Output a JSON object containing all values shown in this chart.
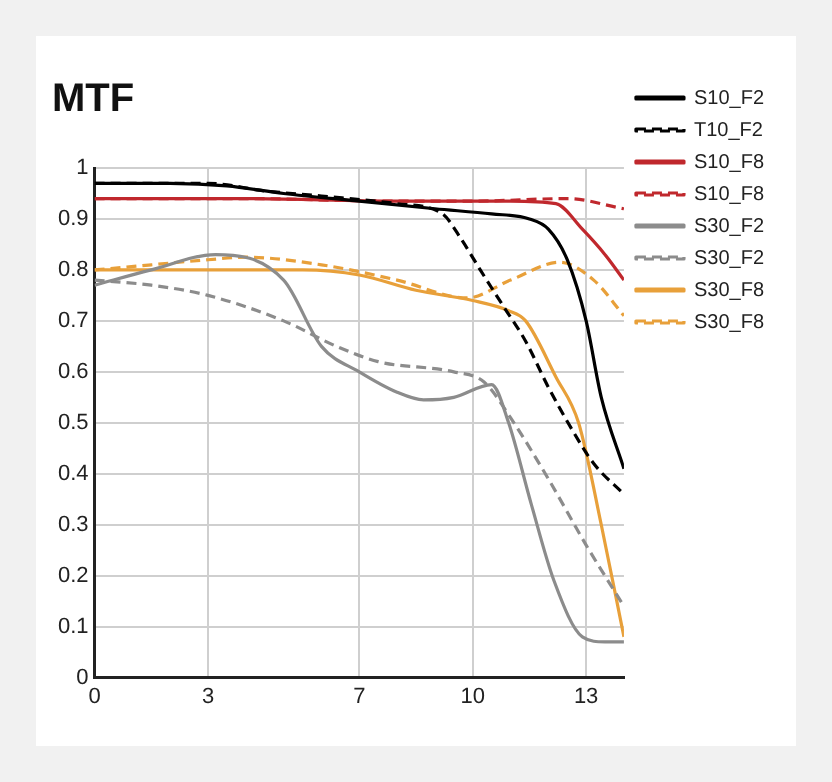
{
  "chart_data": {
    "type": "line",
    "title": "MTF",
    "xlim": [
      0,
      14
    ],
    "xticks": [
      0,
      3,
      7,
      10,
      13
    ],
    "ylim": [
      0,
      1
    ],
    "yticks": [
      0,
      0.1,
      0.2,
      0.3,
      0.4,
      0.5,
      0.6,
      0.7,
      0.8,
      0.9,
      1
    ],
    "grid": true,
    "legend": "right",
    "marker": "none",
    "series": [
      {
        "name": "S10_F2",
        "color": "#000000",
        "line_style": "solid",
        "x": [
          0,
          2,
          3.5,
          5,
          7,
          9,
          10.5,
          11.5,
          12,
          12.5,
          13,
          13.4,
          14
        ],
        "values": [
          0.97,
          0.97,
          0.965,
          0.95,
          0.935,
          0.92,
          0.91,
          0.9,
          0.88,
          0.82,
          0.7,
          0.55,
          0.41
        ]
      },
      {
        "name": "T10_F2",
        "color": "#000000",
        "line_style": "dashed",
        "x": [
          0,
          3,
          4.5,
          6,
          8,
          9.2,
          9.7,
          10.2,
          10.8,
          11.4,
          12,
          12.6,
          13.2,
          14
        ],
        "values": [
          0.97,
          0.97,
          0.955,
          0.945,
          0.93,
          0.91,
          0.86,
          0.8,
          0.73,
          0.66,
          0.57,
          0.49,
          0.42,
          0.36
        ]
      },
      {
        "name": "S10_F8",
        "color": "#c0282d",
        "line_style": "solid",
        "x": [
          0,
          4,
          8,
          11,
          12.2,
          12.9,
          13.5,
          14
        ],
        "values": [
          0.94,
          0.94,
          0.935,
          0.935,
          0.93,
          0.88,
          0.83,
          0.78
        ]
      },
      {
        "name": "S10_F8",
        "color": "#c0282d",
        "line_style": "dashed",
        "x": [
          0,
          4,
          8,
          10,
          12.5,
          14
        ],
        "values": [
          0.94,
          0.94,
          0.935,
          0.935,
          0.94,
          0.92
        ]
      },
      {
        "name": "S30_F2",
        "color": "#8c8c8c",
        "line_style": "solid",
        "x": [
          0,
          1.5,
          3.2,
          5,
          6,
          7,
          8,
          8.7,
          9.5,
          10.5,
          10.95,
          11.55,
          12.15,
          12.9,
          13.5,
          14
        ],
        "values": [
          0.77,
          0.8,
          0.83,
          0.78,
          0.65,
          0.6,
          0.56,
          0.545,
          0.55,
          0.575,
          0.5,
          0.34,
          0.19,
          0.08,
          0.07,
          0.07
        ]
      },
      {
        "name": "S30_F2",
        "color": "#8c8c8c",
        "line_style": "dashed",
        "x": [
          0,
          1.5,
          3,
          5,
          6.4,
          7.5,
          9.5,
          10.3,
          11,
          12,
          13,
          14
        ],
        "values": [
          0.78,
          0.77,
          0.75,
          0.7,
          0.65,
          0.62,
          0.6,
          0.58,
          0.51,
          0.39,
          0.26,
          0.14
        ]
      },
      {
        "name": "S30_F8",
        "color": "#e8a03a",
        "line_style": "solid",
        "x": [
          0,
          3,
          5.5,
          7,
          8.5,
          10,
          10.95,
          11.4,
          12.2,
          12.8,
          13.4,
          14
        ],
        "values": [
          0.8,
          0.8,
          0.8,
          0.79,
          0.76,
          0.74,
          0.72,
          0.7,
          0.59,
          0.5,
          0.3,
          0.08
        ]
      },
      {
        "name": "S30_F8",
        "color": "#e8a03a",
        "line_style": "dashed",
        "x": [
          0,
          1.5,
          3,
          4,
          6,
          8,
          9.85,
          11,
          12.3,
          13.2,
          14
        ],
        "values": [
          0.8,
          0.81,
          0.82,
          0.825,
          0.81,
          0.78,
          0.745,
          0.78,
          0.815,
          0.78,
          0.71
        ]
      }
    ]
  }
}
